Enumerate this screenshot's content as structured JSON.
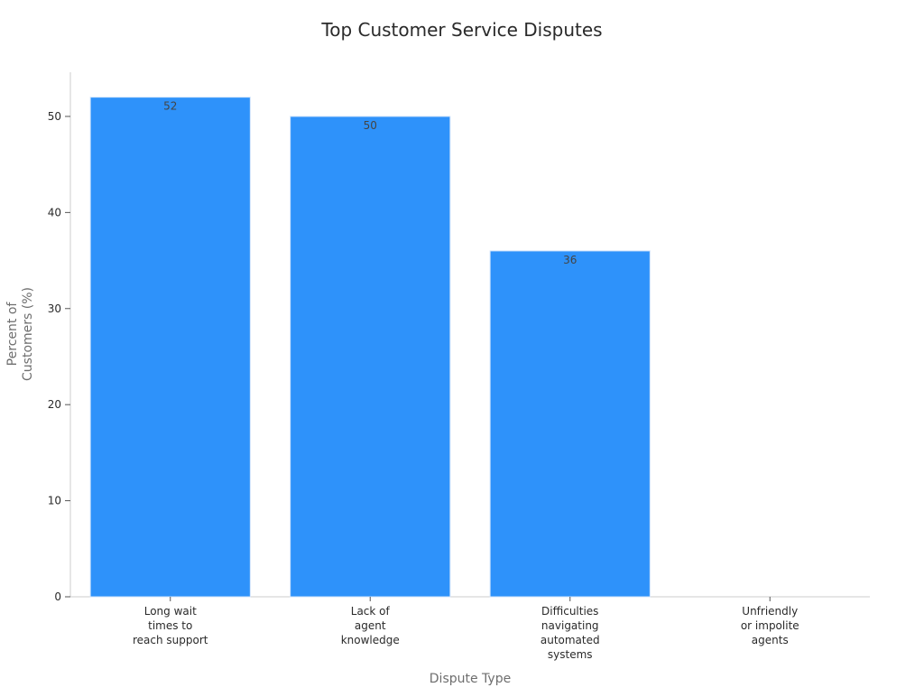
{
  "chart_data": {
    "type": "bar",
    "title": "Top Customer Service Disputes",
    "xlabel": "Dispute Type",
    "ylabel": [
      "Percent of",
      "Customers (%)"
    ],
    "categories": [
      [
        "Long wait",
        "times to",
        "reach support"
      ],
      [
        "Lack of",
        "agent",
        "knowledge"
      ],
      [
        "Difficulties",
        "navigating",
        "automated",
        "systems"
      ],
      [
        "Unfriendly",
        "or impolite",
        "agents"
      ]
    ],
    "values": [
      52,
      50,
      36,
      null
    ],
    "data_labels": [
      "52",
      "50",
      "36",
      ""
    ],
    "ylim": [
      0,
      54.6
    ],
    "yticks": [
      0,
      10,
      20,
      30,
      40,
      50
    ],
    "bar_color": "#2e92fa",
    "grid": false,
    "legend": "none"
  }
}
